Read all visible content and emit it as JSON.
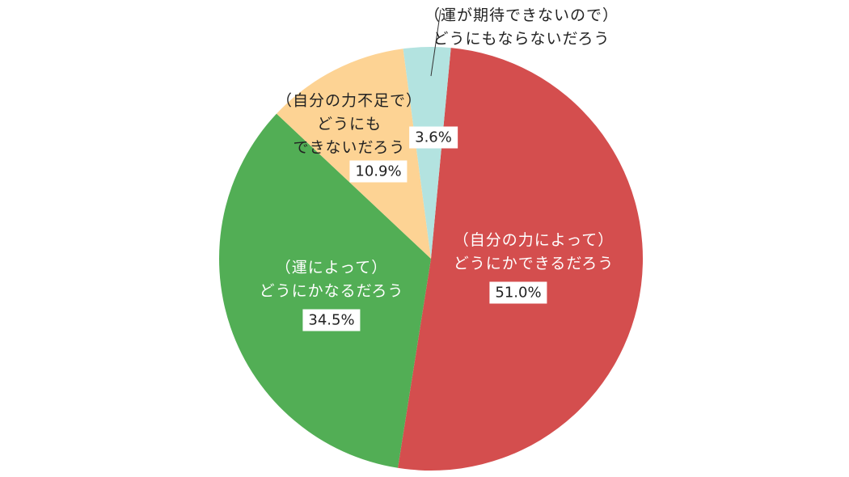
{
  "chart_data": {
    "type": "pie",
    "categories": [
      "（自分の力によって）\nどうにかできるだろう",
      "（運によって）\nどうにかなるだろう",
      "（自分の力不足で）\nどうにも\nできないだろう",
      "（運が期待できないので）\nどうにもならないだろう"
    ],
    "values": [
      51.0,
      34.5,
      10.9,
      3.6
    ],
    "value_labels": [
      "51.0%",
      "34.5%",
      "10.9%",
      "3.6%"
    ],
    "colors": [
      "#d44e4e",
      "#52ae55",
      "#fdd394",
      "#b3e3e0"
    ]
  }
}
